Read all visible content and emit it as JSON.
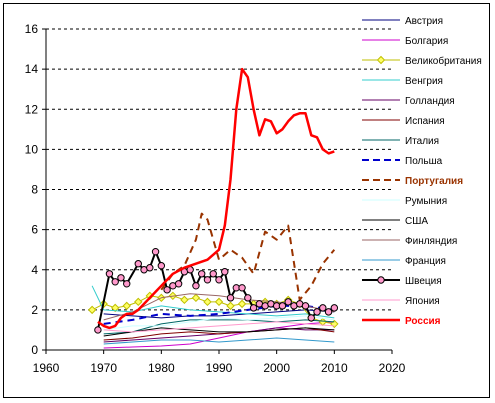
{
  "chart_data": {
    "type": "line",
    "xlim": [
      1960,
      2020
    ],
    "ylim": [
      0,
      16
    ],
    "x_ticks": [
      1960,
      1970,
      1980,
      1990,
      2000,
      2010,
      2020
    ],
    "y_ticks": [
      0,
      2,
      4,
      6,
      8,
      10,
      12,
      14,
      16
    ],
    "grid": "horizontal dashed",
    "legend_position": "right",
    "series": [
      {
        "name": "Австрия",
        "color": "#00007f",
        "style": "solid",
        "width": 1,
        "marker": "none",
        "x": [
          1970,
          1975,
          1980,
          1985,
          1990,
          1995,
          2000,
          2005,
          2010
        ],
        "y": [
          1.8,
          1.7,
          1.6,
          1.7,
          1.7,
          1.8,
          1.9,
          2.0,
          1.9
        ]
      },
      {
        "name": "Болгария",
        "color": "#cc00cc",
        "style": "solid",
        "width": 1,
        "marker": "none",
        "x": [
          1970,
          1975,
          1980,
          1985,
          1990,
          1995,
          2000,
          2005,
          2010
        ],
        "y": [
          0.1,
          0.15,
          0.2,
          0.3,
          0.6,
          0.9,
          1.1,
          1.3,
          1.4
        ]
      },
      {
        "name": "Великобритания",
        "color": "#bfbf00",
        "style": "solid",
        "width": 1,
        "marker": "diamond",
        "marker_fill": "#ffff66",
        "x": [
          1968,
          1970,
          1972,
          1974,
          1976,
          1978,
          1980,
          1982,
          1984,
          1986,
          1988,
          1990,
          1992,
          1994,
          1996,
          1998,
          2000,
          2002,
          2004,
          2006,
          2008,
          2010
        ],
        "y": [
          2.0,
          2.3,
          2.1,
          2.2,
          2.4,
          2.7,
          2.6,
          2.7,
          2.5,
          2.6,
          2.4,
          2.4,
          2.2,
          2.3,
          2.3,
          2.4,
          2.3,
          2.5,
          2.3,
          1.6,
          1.4,
          1.3
        ]
      },
      {
        "name": "Венгрия",
        "color": "#33cccc",
        "style": "solid",
        "width": 1,
        "marker": "none",
        "x": [
          1968,
          1970,
          1975,
          1980,
          1985,
          1990,
          1995,
          2000,
          2005,
          2010
        ],
        "y": [
          3.2,
          2.0,
          1.9,
          2.2,
          2.0,
          1.9,
          1.8,
          1.7,
          1.8,
          1.6
        ]
      },
      {
        "name": "Голландия",
        "color": "#660066",
        "style": "solid",
        "width": 1,
        "marker": "none",
        "x": [
          1970,
          1975,
          1980,
          1985,
          1990,
          1995,
          2000,
          2005,
          2010
        ],
        "y": [
          0.4,
          0.5,
          0.6,
          0.7,
          0.8,
          0.9,
          1.1,
          1.0,
          1.0
        ]
      },
      {
        "name": "Испания",
        "color": "#800000",
        "style": "solid",
        "width": 1,
        "marker": "none",
        "x": [
          1970,
          1975,
          1980,
          1985,
          1990,
          1995,
          2000,
          2005,
          2010
        ],
        "y": [
          0.5,
          0.6,
          0.8,
          0.9,
          0.8,
          0.9,
          1.0,
          1.1,
          0.9
        ]
      },
      {
        "name": "Италия",
        "color": "#006666",
        "style": "solid",
        "width": 1,
        "marker": "none",
        "x": [
          1970,
          1975,
          1980,
          1985,
          1990,
          1995,
          2000,
          2005,
          2010
        ],
        "y": [
          0.8,
          0.9,
          1.3,
          1.5,
          1.5,
          1.5,
          1.4,
          1.5,
          1.4
        ]
      },
      {
        "name": "Польша",
        "color": "#0000cc",
        "style": "dashed",
        "width": 2,
        "marker": "none",
        "x": [
          1970,
          1975,
          1980,
          1985,
          1990,
          1995,
          2000,
          2005,
          2010
        ],
        "y": [
          1.3,
          1.5,
          1.8,
          1.7,
          1.8,
          2.0,
          2.2,
          2.2,
          2.0
        ]
      },
      {
        "name": "Португалия",
        "color": "#993300",
        "style": "dashed",
        "width": 2,
        "marker": "none",
        "x": [
          1980,
          1982,
          1984,
          1986,
          1987,
          1988,
          1990,
          1992,
          1994,
          1996,
          1998,
          2000,
          2002,
          2004,
          2006,
          2008,
          2010
        ],
        "y": [
          3.0,
          3.8,
          4.2,
          5.5,
          6.8,
          6.5,
          4.5,
          5.0,
          4.6,
          3.8,
          5.9,
          5.5,
          6.2,
          2.5,
          3.2,
          4.3,
          5.0
        ]
      },
      {
        "name": "Румыния",
        "color": "#ccffff",
        "style": "solid",
        "width": 1,
        "marker": "none",
        "x": [
          1970,
          1975,
          1980,
          1985,
          1990,
          1995,
          2000,
          2005,
          2010
        ],
        "y": [
          1.0,
          1.2,
          1.2,
          1.4,
          1.6,
          1.5,
          1.6,
          1.7,
          1.5
        ]
      },
      {
        "name": "США",
        "color": "#000000",
        "style": "solid",
        "width": 1,
        "marker": "none",
        "x": [
          1970,
          1975,
          1980,
          1985,
          1990,
          1995,
          2000,
          2005,
          2010
        ],
        "y": [
          0.7,
          0.9,
          1.1,
          1.0,
          0.9,
          0.9,
          1.0,
          1.1,
          1.0
        ]
      },
      {
        "name": "Финляндия",
        "color": "#996666",
        "style": "solid",
        "width": 1,
        "marker": "none",
        "x": [
          1970,
          1975,
          1980,
          1985,
          1990,
          1995,
          2000,
          2005,
          2010
        ],
        "y": [
          1.5,
          1.9,
          2.6,
          2.8,
          2.7,
          2.5,
          2.4,
          2.2,
          1.9
        ]
      },
      {
        "name": "Франция",
        "color": "#3399cc",
        "style": "solid",
        "width": 1,
        "marker": "none",
        "x": [
          1970,
          1975,
          1980,
          1985,
          1990,
          1995,
          2000,
          2005,
          2010
        ],
        "y": [
          0.3,
          0.4,
          0.5,
          0.5,
          0.4,
          0.5,
          0.6,
          0.5,
          0.4
        ]
      },
      {
        "name": "Швеция",
        "color": "#000000",
        "style": "solid",
        "width": 2,
        "marker": "circle",
        "marker_fill": "#ff99cc",
        "x": [
          1969,
          1971,
          1972,
          1973,
          1974,
          1976,
          1977,
          1978,
          1979,
          1980,
          1981,
          1982,
          1983,
          1984,
          1985,
          1986,
          1987,
          1988,
          1989,
          1990,
          1991,
          1992,
          1993,
          1994,
          1995,
          1996,
          1997,
          1998,
          1999,
          2000,
          2001,
          2002,
          2003,
          2004,
          2005,
          2006,
          2007,
          2008,
          2009,
          2010
        ],
        "y": [
          1.0,
          3.8,
          3.4,
          3.6,
          3.3,
          4.3,
          4.0,
          4.1,
          4.9,
          4.2,
          3.0,
          3.2,
          3.3,
          3.9,
          4.0,
          3.2,
          3.8,
          3.5,
          3.8,
          3.5,
          3.9,
          2.6,
          3.1,
          3.1,
          2.6,
          2.1,
          2.3,
          2.2,
          2.3,
          2.2,
          2.2,
          2.4,
          2.2,
          2.3,
          2.2,
          1.6,
          1.9,
          2.1,
          1.9,
          2.1
        ]
      },
      {
        "name": "Япония",
        "color": "#ff99cc",
        "style": "solid",
        "width": 1,
        "marker": "none",
        "x": [
          1970,
          1975,
          1980,
          1985,
          1990,
          1995,
          2000,
          2005,
          2010
        ],
        "y": [
          1.0,
          0.9,
          1.0,
          1.1,
          1.2,
          1.3,
          1.4,
          1.3,
          1.2
        ]
      },
      {
        "name": "Россия",
        "color": "#ff0000",
        "style": "solid",
        "width": 2.5,
        "marker": "none",
        "x": [
          1969,
          1970,
          1971,
          1972,
          1973,
          1974,
          1975,
          1976,
          1977,
          1978,
          1979,
          1980,
          1982,
          1984,
          1986,
          1988,
          1990,
          1991,
          1992,
          1993,
          1994,
          1995,
          1996,
          1997,
          1998,
          1999,
          2000,
          2001,
          2002,
          2003,
          2004,
          2005,
          2006,
          2007,
          2008,
          2009,
          2010
        ],
        "y": [
          1.4,
          1.2,
          1.1,
          1.2,
          1.6,
          1.8,
          1.8,
          2.0,
          2.3,
          2.6,
          2.9,
          3.2,
          3.8,
          4.1,
          4.3,
          4.5,
          5.0,
          6.2,
          8.5,
          12.0,
          14.0,
          13.6,
          12.0,
          10.7,
          11.5,
          11.4,
          10.8,
          11.0,
          11.4,
          11.7,
          11.8,
          11.8,
          10.7,
          10.6,
          10.0,
          9.8,
          9.9
        ]
      }
    ]
  }
}
